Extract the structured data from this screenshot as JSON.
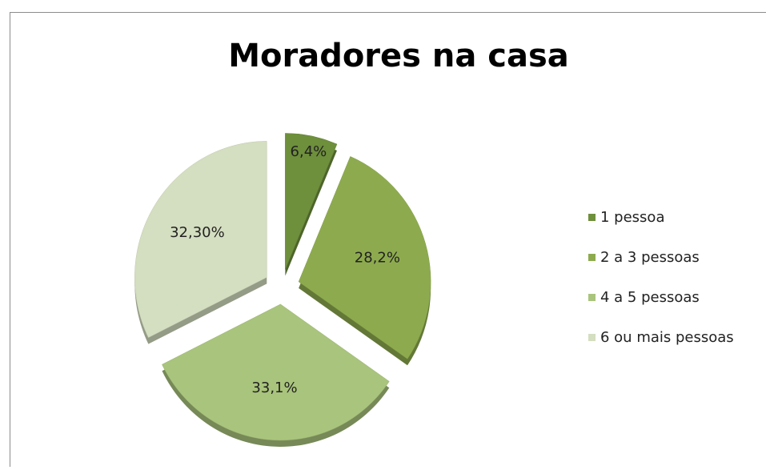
{
  "chart_data": {
    "type": "pie",
    "title": "Moradores na casa",
    "categories": [
      "1 pessoa",
      "2 a 3 pessoas",
      "4 a 5 pessoas",
      "6 ou mais pessoas"
    ],
    "values": [
      6.4,
      28.2,
      33.1,
      32.3
    ],
    "value_labels": [
      "6,4%",
      "28,2%",
      "33,1%",
      "32,30%"
    ],
    "colors": [
      "#6e8f3c",
      "#8dab4e",
      "#a9c47c",
      "#d4dec0"
    ],
    "legend": "right"
  }
}
